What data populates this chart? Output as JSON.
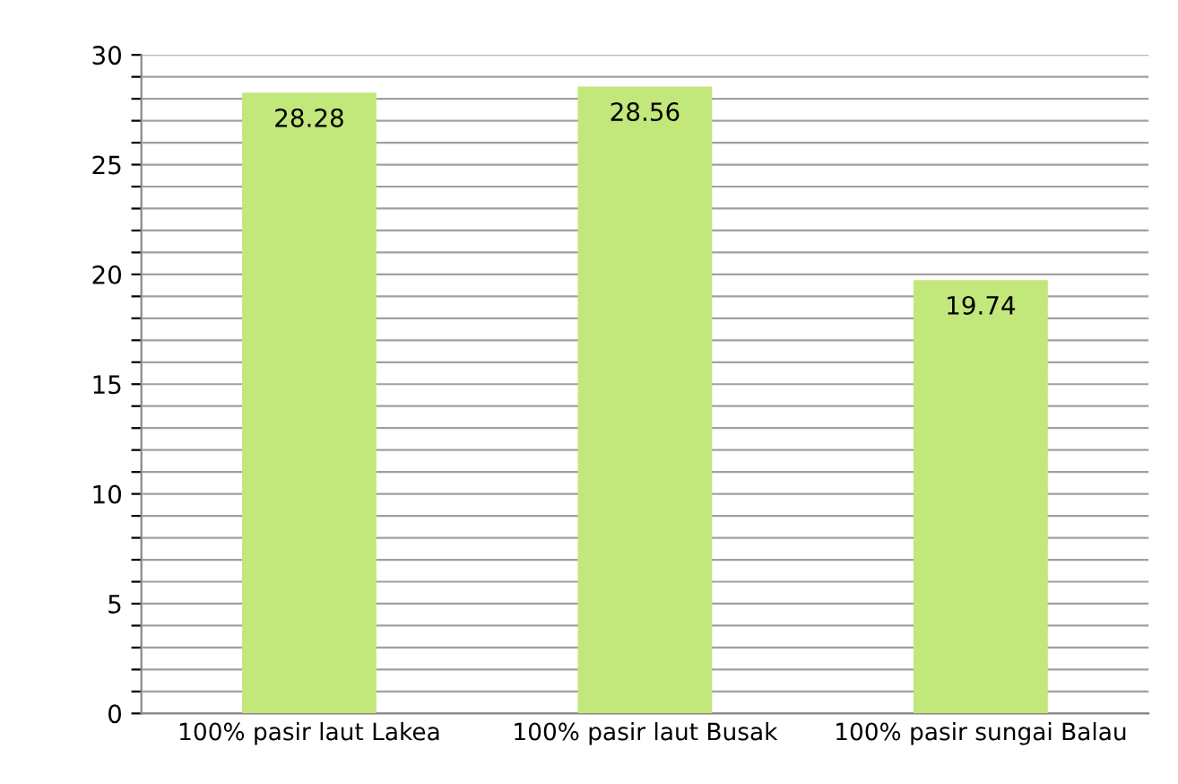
{
  "chart_data": {
    "type": "bar",
    "categories": [
      "100% pasir laut Lakea",
      "100% pasir laut Busak",
      "100% pasir sungai Balau"
    ],
    "values": [
      28.28,
      28.56,
      19.74
    ],
    "color": "#c2e77a",
    "ylim": [
      0,
      30
    ],
    "yticks": [
      0,
      {
        "value": 1,
        "label": null
      },
      {
        "value": 2,
        "label": null
      },
      {
        "value": 3,
        "label": null
      },
      {
        "value": 4,
        "label": null
      },
      5,
      {
        "value": 6,
        "label": null
      },
      {
        "value": 7,
        "label": null
      },
      {
        "value": 8,
        "label": null
      },
      {
        "value": 9,
        "label": null
      },
      10,
      {
        "value": 11,
        "label": null
      },
      {
        "value": 12,
        "label": null
      },
      {
        "value": 13,
        "label": null
      },
      {
        "value": 14,
        "label": null
      },
      15,
      {
        "value": 16,
        "label": null
      },
      {
        "value": 17,
        "label": null
      },
      {
        "value": 18,
        "label": null
      },
      {
        "value": 19,
        "label": null
      },
      20,
      {
        "value": 21,
        "label": null
      },
      {
        "value": 22,
        "label": null
      },
      {
        "value": 23,
        "label": null
      },
      {
        "value": 24,
        "label": null
      },
      25,
      {
        "value": 26,
        "label": null
      },
      {
        "value": 27,
        "label": null
      },
      {
        "value": 28,
        "label": null
      },
      {
        "value": 29,
        "label": null
      },
      30
    ],
    "grid": "y",
    "data_labels": true
  }
}
